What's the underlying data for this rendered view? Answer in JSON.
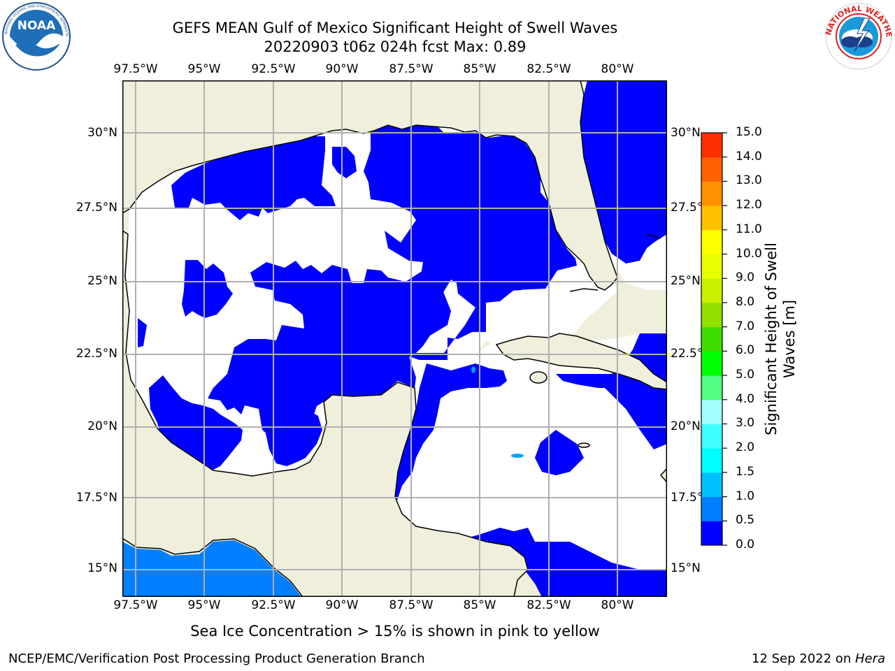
{
  "header": {
    "title_line1": "GEFS MEAN Gulf of Mexico Significant Height of Swell Waves",
    "title_line2": "20220903 t06z 024h fcst   Max: 0.89"
  },
  "logos": {
    "left": {
      "text": "NOAA",
      "ring_text": "NATIONAL OCEANIC AND ATMOSPHERIC ADMINISTRATION · U.S. DEPARTMENT OF COMMERCE"
    },
    "right": {
      "ring_text": "NATIONAL WEATHER SERVICE"
    }
  },
  "map": {
    "lat_labels": [
      "30°N",
      "27.5°N",
      "25°N",
      "22.5°N",
      "20°N",
      "17.5°N",
      "15°N"
    ],
    "lon_labels": [
      "97.5°W",
      "95°W",
      "92.5°W",
      "90°W",
      "87.5°W",
      "85°W",
      "82.5°W",
      "80°W"
    ],
    "extent": {
      "lon_min": -98,
      "lon_max": -78.2,
      "lat_min": 14,
      "lat_max": 31.8
    },
    "colors": {
      "land": "#efefdc",
      "ocean_low": "#0000ff",
      "ocean_mid": "#0080ff",
      "grid": "#b0b0b0"
    }
  },
  "colorbar": {
    "label_line1": "Significant Height of Swell",
    "label_line2": "Waves [m]",
    "ticks": [
      "0.0",
      "0.5",
      "1.0",
      "1.5",
      "2.0",
      "3.0",
      "4.0",
      "5.0",
      "6.0",
      "7.0",
      "8.0",
      "9.0",
      "10.0",
      "11.0",
      "12.0",
      "13.0",
      "14.0",
      "15.0"
    ],
    "colors": [
      "#0000ff",
      "#0080ff",
      "#00c0ff",
      "#00ffff",
      "#40ffff",
      "#a0ffff",
      "#50ff80",
      "#00ff00",
      "#40dd00",
      "#90e000",
      "#c8f000",
      "#e8ff00",
      "#ffff00",
      "#ffc000",
      "#ff9000",
      "#ff6000",
      "#ff3000",
      "#ff0000"
    ]
  },
  "caption": "Sea Ice Concentration > 15% is shown in pink to yellow",
  "footer": {
    "left": "NCEP/EMC/Verification Post Processing Product Generation Branch",
    "date": "12 Sep 2022 on ",
    "host": "Hera"
  }
}
